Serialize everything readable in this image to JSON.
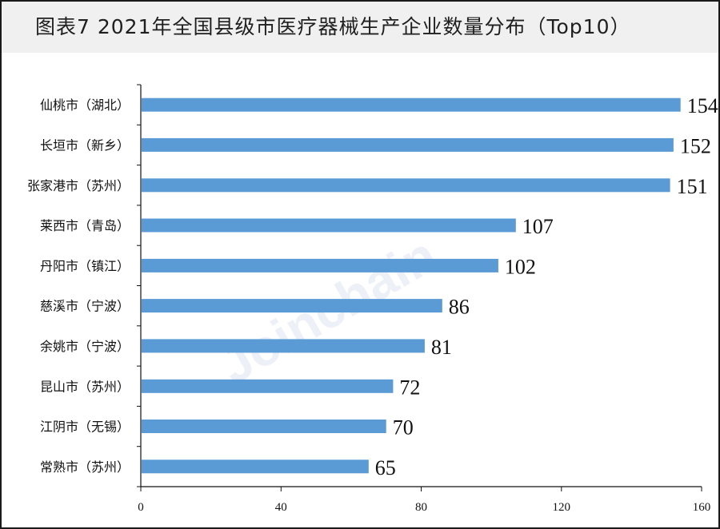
{
  "title": "图表7  2021年全国县级市医疗器械生产企业数量分布（Top10）",
  "watermark": "Joinchain",
  "colors": {
    "bar": "#5b9bd5",
    "axis": "#111111",
    "title_bg": "#f0f0f0"
  },
  "chart_data": {
    "type": "bar",
    "orientation": "horizontal",
    "categories": [
      "仙桃市（湖北）",
      "长垣市（新乡）",
      "张家港市（苏州）",
      "莱西市（青岛）",
      "丹阳市（镇江）",
      "慈溪市（宁波）",
      "余姚市（宁波）",
      "昆山市（苏州）",
      "江阴市（无锡）",
      "常熟市（苏州）"
    ],
    "values": [
      154,
      152,
      151,
      107,
      102,
      86,
      81,
      72,
      70,
      65
    ],
    "xlim": [
      0,
      160
    ],
    "xticks": [
      0,
      40,
      80,
      120,
      160
    ],
    "grid": false,
    "legend": "none",
    "data_labels": true
  }
}
